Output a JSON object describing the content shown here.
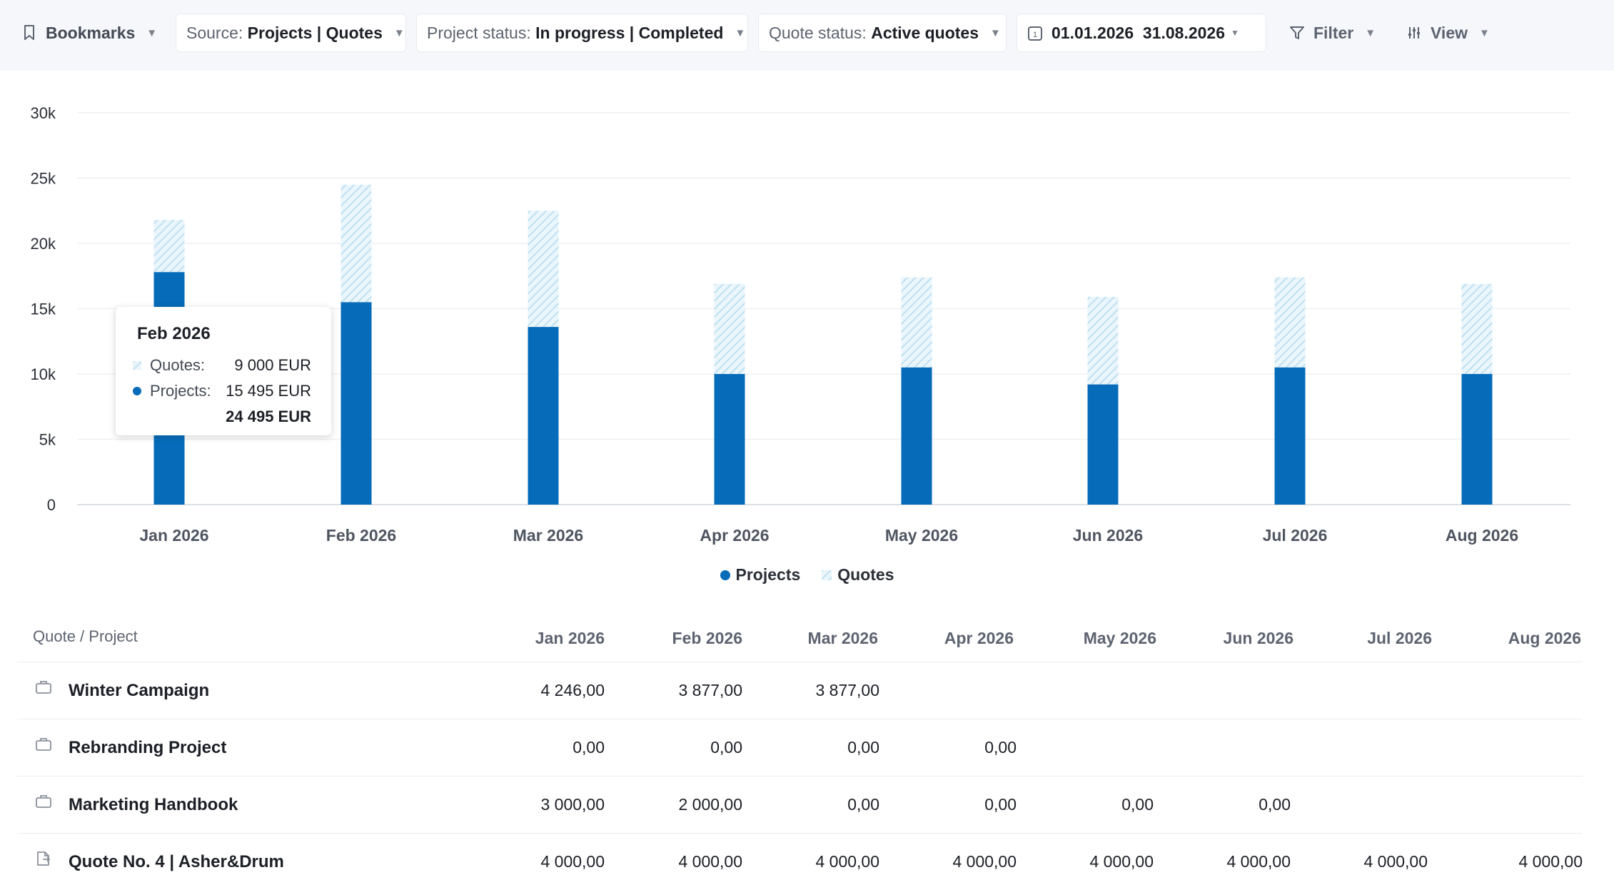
{
  "toolbar": {
    "bookmarks_label": "Bookmarks",
    "source_label": "Source:",
    "source_value": "Projects | Quotes",
    "project_status_label": "Project status:",
    "project_status_value": "In progress | Completed",
    "quote_status_label": "Quote status:",
    "quote_status_value": "Active quotes",
    "date_from": "01.01.2026",
    "date_to": "31.08.2026",
    "filter_label": "Filter",
    "view_label": "View"
  },
  "colors": {
    "projects": "#066bb8",
    "quotes": "#cfe9f5",
    "background": "#f5f7fa"
  },
  "icons": [
    "bookmark-icon",
    "caret-down-icon",
    "calendar-icon",
    "filter-icon",
    "view-settings-icon",
    "briefcase-icon",
    "quote-document-icon"
  ],
  "chart_data": {
    "type": "bar",
    "stacked": true,
    "categories": [
      "Jan 2026",
      "Feb 2026",
      "Mar 2026",
      "Apr 2026",
      "May 2026",
      "Jun 2026",
      "Jul 2026",
      "Aug 2026"
    ],
    "series": [
      {
        "name": "Projects",
        "values": [
          17800,
          15495,
          13600,
          10000,
          10500,
          9200,
          10500,
          10000
        ]
      },
      {
        "name": "Quotes",
        "values": [
          4000,
          9000,
          8900,
          6900,
          6900,
          6700,
          6900,
          6900
        ]
      }
    ],
    "ylim": [
      0,
      30000
    ],
    "yticks": [
      "0",
      "5k",
      "10k",
      "15k",
      "20k",
      "25k",
      "30k"
    ],
    "ytick_values": [
      0,
      5000,
      10000,
      15000,
      20000,
      25000,
      30000
    ],
    "grid": true,
    "legend_position": "bottom-center"
  },
  "tooltip": {
    "title": "Feb 2026",
    "quotes_label": "Quotes:",
    "quotes_value": "9 000 EUR",
    "projects_label": "Projects:",
    "projects_value": "15 495 EUR",
    "total": "24 495 EUR"
  },
  "table": {
    "first_header": "Quote / Project",
    "columns": [
      "Jan 2026",
      "Feb 2026",
      "Mar 2026",
      "Apr 2026",
      "May 2026",
      "Jun 2026",
      "Jul 2026",
      "Aug 2026"
    ],
    "rows": [
      {
        "type": "project",
        "name": "Winter Campaign",
        "values": [
          "4 246,00",
          "3 877,00",
          "3 877,00",
          "",
          "",
          "",
          "",
          ""
        ]
      },
      {
        "type": "project",
        "name": "Rebranding Project",
        "values": [
          "0,00",
          "0,00",
          "0,00",
          "0,00",
          "",
          "",
          "",
          ""
        ]
      },
      {
        "type": "project",
        "name": "Marketing Handbook",
        "values": [
          "3 000,00",
          "2 000,00",
          "0,00",
          "0,00",
          "0,00",
          "0,00",
          "",
          ""
        ]
      },
      {
        "type": "quote",
        "name": "Quote No. 4 | Asher&Drum",
        "values": [
          "4 000,00",
          "4 000,00",
          "4 000,00",
          "4 000,00",
          "4 000,00",
          "4 000,00",
          "4 000,00",
          "4 000,00"
        ]
      }
    ]
  }
}
